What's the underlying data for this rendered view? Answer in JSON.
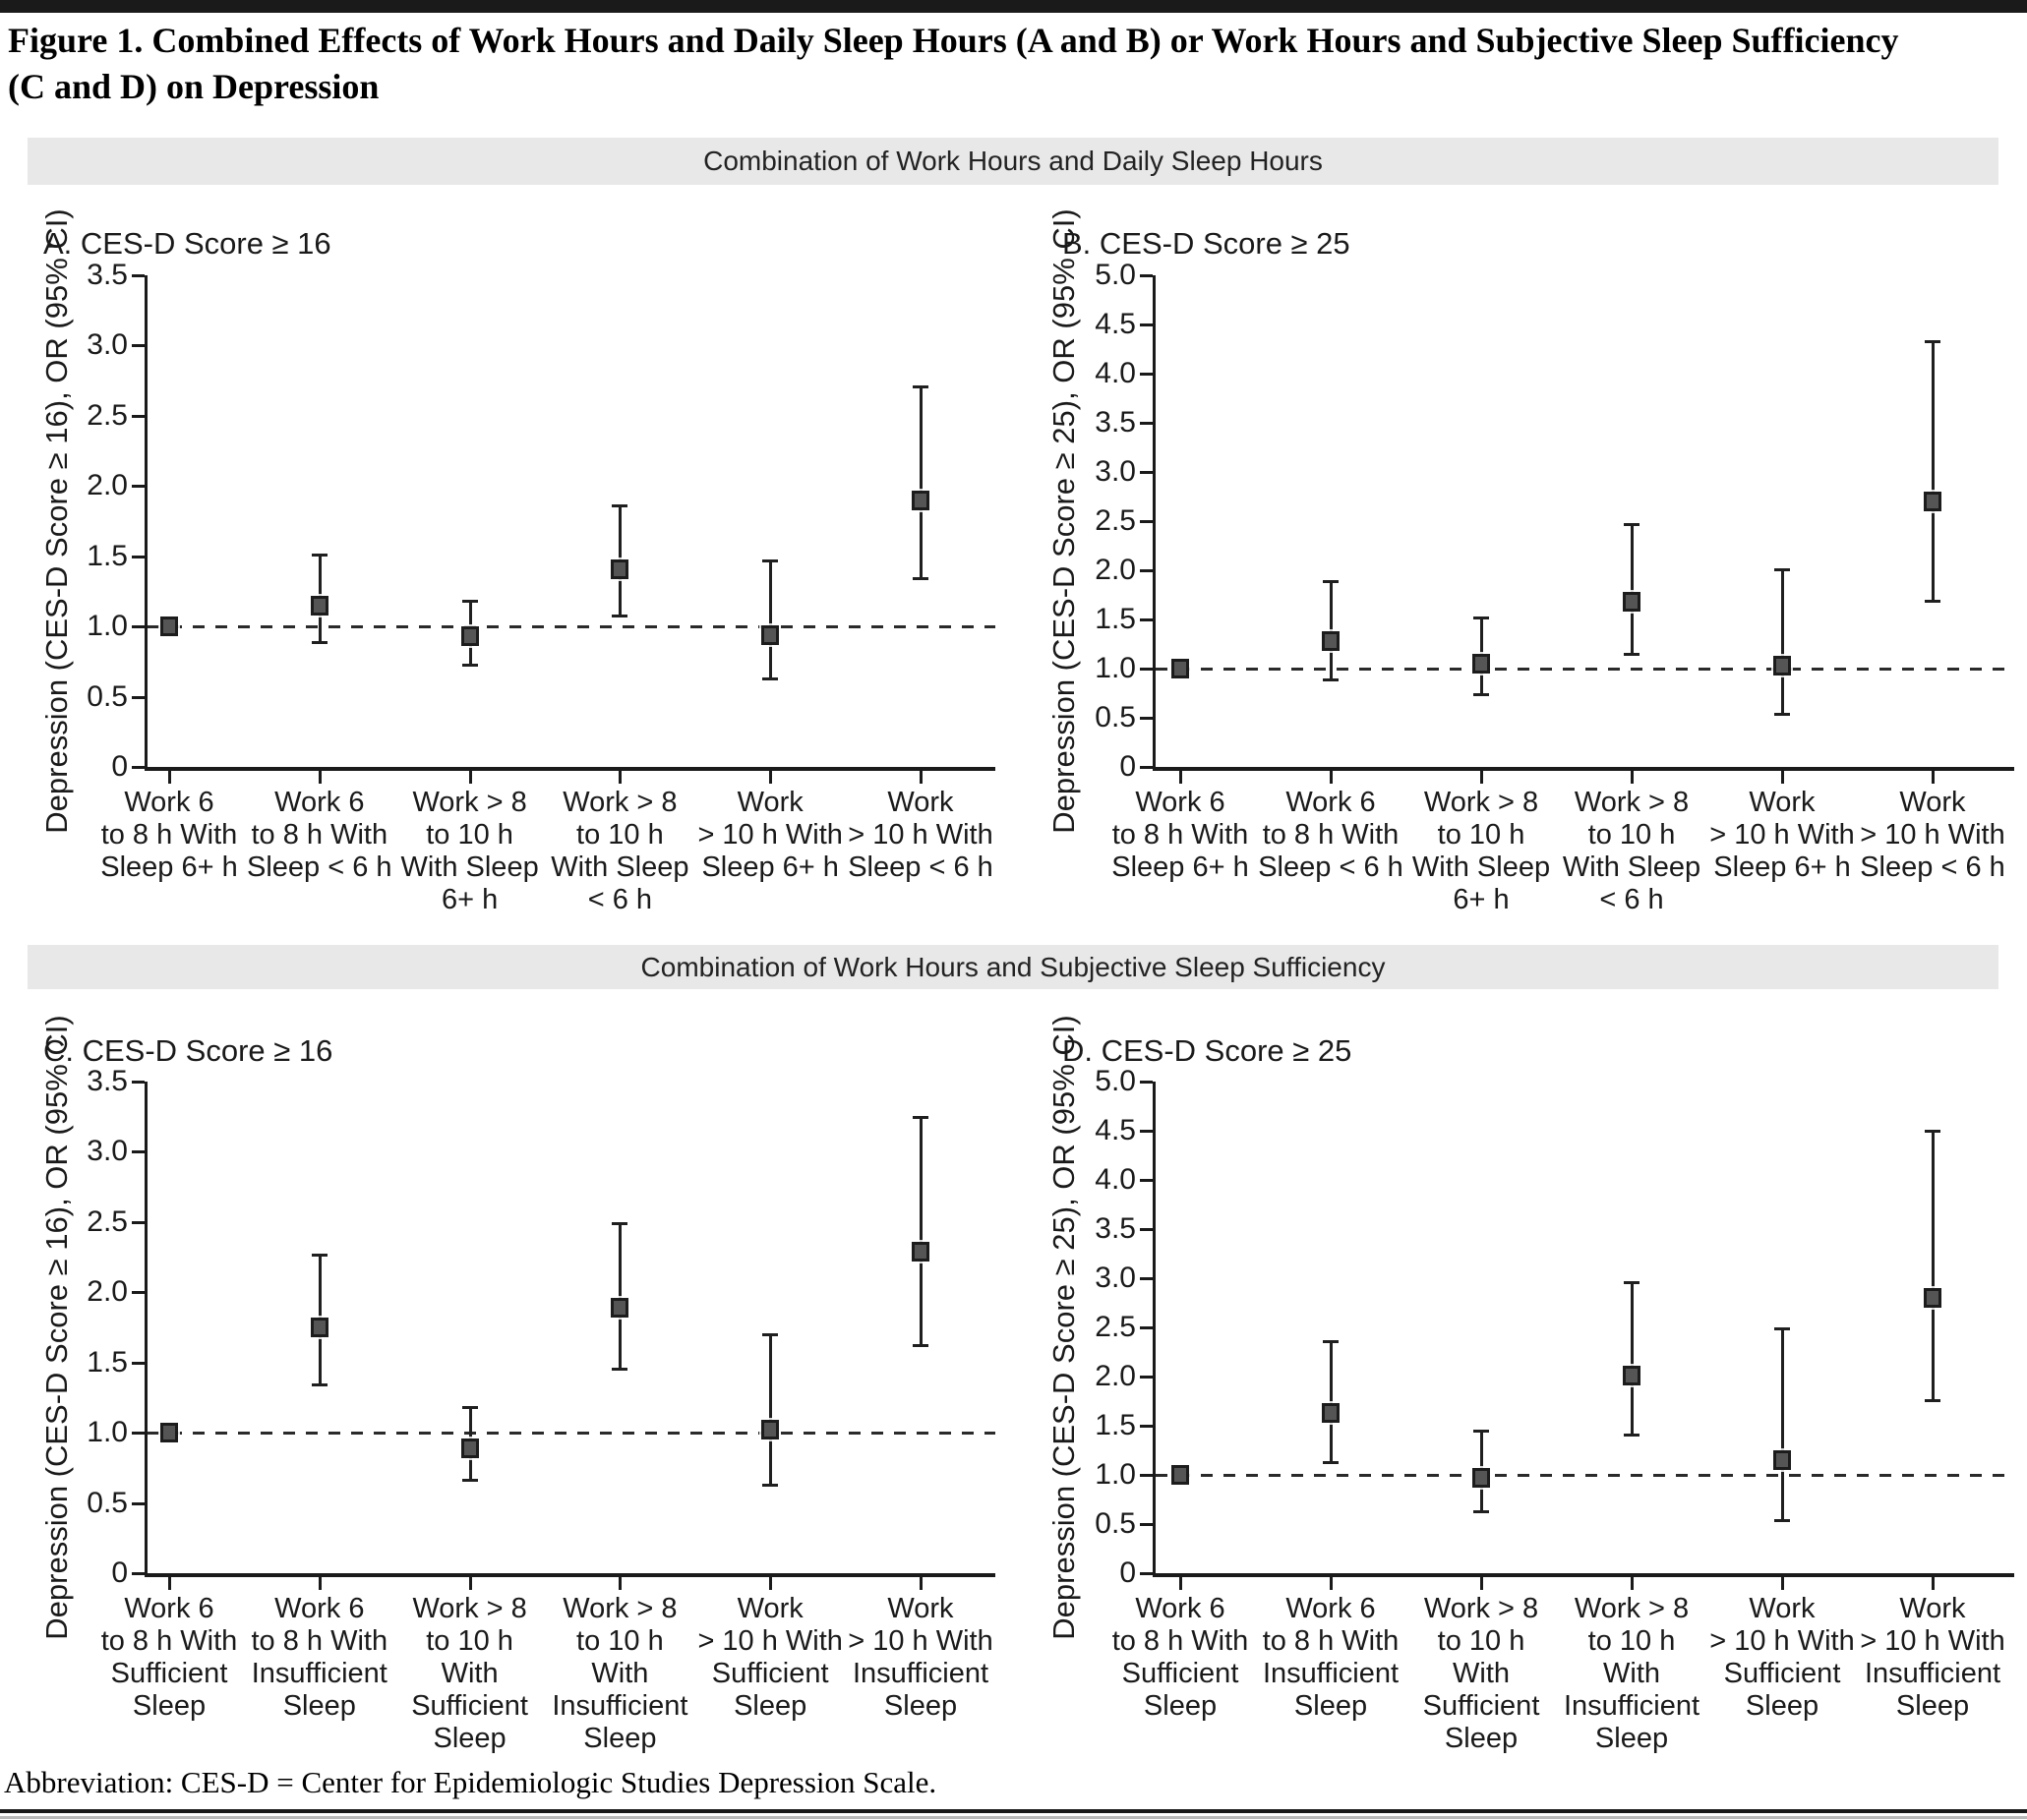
{
  "figure": {
    "title_lines": [
      "Figure 1. Combined Effects of Work Hours and Daily Sleep Hours (A and B) or Work Hours and Subjective Sleep Sufficiency",
      "(C and D) on Depression"
    ],
    "section_banners": [
      "Combination of Work Hours and Daily Sleep Hours",
      "Combination of Work Hours and Subjective Sleep Sufficiency"
    ],
    "footnote": "Abbreviation: CES-D = Center for Epidemiologic Studies Depression Scale.",
    "colors": {
      "marker_fill": "#555555",
      "marker_border": "#1c1c1c",
      "axis": "#1a1a1a",
      "banner_bg": "#e8e8e8",
      "top_bar": "#1a1a1a"
    }
  },
  "chart_data": [
    {
      "id": "A",
      "type": "scatter",
      "panel_label": "A. CES-D Score ≥ 16",
      "section": "Combination of Work Hours and Daily Sleep Hours",
      "ylabel": "Depression (CES-D Score ≥ 16), OR (95% CI)",
      "ylim": [
        0,
        3.5
      ],
      "ytick_step": 0.5,
      "reference_line": 1.0,
      "grid": false,
      "categories": [
        [
          "Work 6",
          "to 8 h With",
          "Sleep 6+ h"
        ],
        [
          "Work 6",
          "to 8 h With",
          "Sleep < 6 h"
        ],
        [
          "Work > 8",
          "to 10 h",
          "With Sleep",
          "6+ h"
        ],
        [
          "Work > 8",
          "to 10 h",
          "With Sleep",
          "< 6 h"
        ],
        [
          "Work",
          "> 10 h With",
          "Sleep 6+ h"
        ],
        [
          "Work",
          "> 10 h With",
          "Sleep < 6 h"
        ]
      ],
      "points": [
        {
          "or": 1.0,
          "ci_low": null,
          "ci_high": null,
          "reference": true
        },
        {
          "or": 1.15,
          "ci_low": 0.88,
          "ci_high": 1.51,
          "reference": false
        },
        {
          "or": 0.93,
          "ci_low": 0.72,
          "ci_high": 1.18,
          "reference": false
        },
        {
          "or": 1.41,
          "ci_low": 1.07,
          "ci_high": 1.86,
          "reference": false
        },
        {
          "or": 0.94,
          "ci_low": 0.62,
          "ci_high": 1.47,
          "reference": false
        },
        {
          "or": 1.9,
          "ci_low": 1.34,
          "ci_high": 2.71,
          "reference": false
        }
      ]
    },
    {
      "id": "B",
      "type": "scatter",
      "panel_label": "B. CES-D Score ≥ 25",
      "section": "Combination of Work Hours and Daily Sleep Hours",
      "ylabel": "Depression (CES-D Score ≥ 25), OR (95% CI)",
      "ylim": [
        0,
        5.0
      ],
      "ytick_step": 0.5,
      "reference_line": 1.0,
      "grid": false,
      "categories": [
        [
          "Work 6",
          "to 8 h With",
          "Sleep 6+ h"
        ],
        [
          "Work 6",
          "to 8 h With",
          "Sleep < 6 h"
        ],
        [
          "Work > 8",
          "to 10 h",
          "With Sleep",
          "6+ h"
        ],
        [
          "Work > 8",
          "to 10 h",
          "With Sleep",
          "< 6 h"
        ],
        [
          "Work",
          "> 10 h With",
          "Sleep 6+ h"
        ],
        [
          "Work",
          "> 10 h With",
          "Sleep < 6 h"
        ]
      ],
      "points": [
        {
          "or": 1.0,
          "ci_low": null,
          "ci_high": null,
          "reference": true
        },
        {
          "or": 1.28,
          "ci_low": 0.88,
          "ci_high": 1.89,
          "reference": false
        },
        {
          "or": 1.05,
          "ci_low": 0.73,
          "ci_high": 1.52,
          "reference": false
        },
        {
          "or": 1.68,
          "ci_low": 1.14,
          "ci_high": 2.47,
          "reference": false
        },
        {
          "or": 1.03,
          "ci_low": 0.53,
          "ci_high": 2.01,
          "reference": false
        },
        {
          "or": 2.7,
          "ci_low": 1.68,
          "ci_high": 4.33,
          "reference": false
        }
      ]
    },
    {
      "id": "C",
      "type": "scatter",
      "panel_label": "C. CES-D Score ≥ 16",
      "section": "Combination of Work Hours and Subjective Sleep Sufficiency",
      "ylabel": "Depression (CES-D Score ≥ 16), OR (95% CI)",
      "ylim": [
        0,
        3.5
      ],
      "ytick_step": 0.5,
      "reference_line": 1.0,
      "grid": false,
      "categories": [
        [
          "Work 6",
          "to 8 h With",
          "Sufficient",
          "Sleep"
        ],
        [
          "Work 6",
          "to 8 h With",
          "Insufficient",
          "Sleep"
        ],
        [
          "Work > 8",
          "to 10 h",
          "With",
          "Sufficient",
          "Sleep"
        ],
        [
          "Work > 8",
          "to 10 h",
          "With",
          "Insufficient",
          "Sleep"
        ],
        [
          "Work",
          "> 10 h With",
          "Sufficient",
          "Sleep"
        ],
        [
          "Work",
          "> 10 h With",
          "Insufficient",
          "Sleep"
        ]
      ],
      "points": [
        {
          "or": 1.0,
          "ci_low": null,
          "ci_high": null,
          "reference": true
        },
        {
          "or": 1.75,
          "ci_low": 1.34,
          "ci_high": 2.27,
          "reference": false
        },
        {
          "or": 0.89,
          "ci_low": 0.66,
          "ci_high": 1.18,
          "reference": false
        },
        {
          "or": 1.89,
          "ci_low": 1.45,
          "ci_high": 2.49,
          "reference": false
        },
        {
          "or": 1.02,
          "ci_low": 0.62,
          "ci_high": 1.7,
          "reference": false
        },
        {
          "or": 2.29,
          "ci_low": 1.62,
          "ci_high": 3.25,
          "reference": false
        }
      ]
    },
    {
      "id": "D",
      "type": "scatter",
      "panel_label": "D. CES-D Score ≥ 25",
      "section": "Combination of Work Hours and Subjective Sleep Sufficiency",
      "ylabel": "Depression (CES-D Score ≥ 25), OR (95% CI)",
      "ylim": [
        0,
        5.0
      ],
      "ytick_step": 0.5,
      "reference_line": 1.0,
      "grid": false,
      "categories": [
        [
          "Work 6",
          "to 8 h With",
          "Sufficient",
          "Sleep"
        ],
        [
          "Work 6",
          "to 8 h With",
          "Insufficient",
          "Sleep"
        ],
        [
          "Work > 8",
          "to 10 h",
          "With",
          "Sufficient",
          "Sleep"
        ],
        [
          "Work > 8",
          "to 10 h",
          "With",
          "Insufficient",
          "Sleep"
        ],
        [
          "Work",
          "> 10 h With",
          "Sufficient",
          "Sleep"
        ],
        [
          "Work",
          "> 10 h With",
          "Insufficient",
          "Sleep"
        ]
      ],
      "points": [
        {
          "or": 1.0,
          "ci_low": null,
          "ci_high": null,
          "reference": true
        },
        {
          "or": 1.63,
          "ci_low": 1.12,
          "ci_high": 2.36,
          "reference": false
        },
        {
          "or": 0.97,
          "ci_low": 0.62,
          "ci_high": 1.45,
          "reference": false
        },
        {
          "or": 2.01,
          "ci_low": 1.4,
          "ci_high": 2.96,
          "reference": false
        },
        {
          "or": 1.15,
          "ci_low": 0.53,
          "ci_high": 2.49,
          "reference": false
        },
        {
          "or": 2.8,
          "ci_low": 1.75,
          "ci_high": 4.5,
          "reference": false
        }
      ]
    }
  ]
}
